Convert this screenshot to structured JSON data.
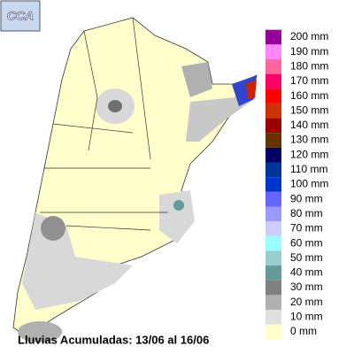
{
  "logo": "CCA",
  "title": "Lluvias Acumuladas: 13/06 al 16/06",
  "legend": [
    {
      "label": "200 mm",
      "color": "#990099"
    },
    {
      "label": "190 mm",
      "color": "#ff88ff"
    },
    {
      "label": "180 mm",
      "color": "#ff6699"
    },
    {
      "label": "170 mm",
      "color": "#ff0066"
    },
    {
      "label": "160 mm",
      "color": "#ff0000"
    },
    {
      "label": "150 mm",
      "color": "#cc3300"
    },
    {
      "label": "140 mm",
      "color": "#990000"
    },
    {
      "label": "130 mm",
      "color": "#663300"
    },
    {
      "label": "120 mm",
      "color": "#000066"
    },
    {
      "label": "110 mm",
      "color": "#003399"
    },
    {
      "label": "100 mm",
      "color": "#0033cc"
    },
    {
      "label": "90 mm",
      "color": "#6666ff"
    },
    {
      "label": "80 mm",
      "color": "#9999ff"
    },
    {
      "label": "70 mm",
      "color": "#ccccff"
    },
    {
      "label": "60 mm",
      "color": "#99ffff"
    },
    {
      "label": "50 mm",
      "color": "#99cccc"
    },
    {
      "label": "40 mm",
      "color": "#669999"
    },
    {
      "label": "30 mm",
      "color": "#808080"
    },
    {
      "label": "20 mm",
      "color": "#b0b0b0"
    },
    {
      "label": "10 mm",
      "color": "#e0e0e0"
    },
    {
      "label": "0 mm",
      "color": "#ffffcc"
    }
  ]
}
